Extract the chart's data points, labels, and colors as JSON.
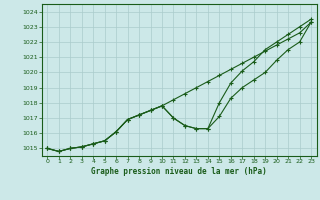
{
  "title": "Graphe pression niveau de la mer (hPa)",
  "bg_color": "#cce8e8",
  "grid_color": "#aacccc",
  "line_color": "#1a5c1a",
  "xlim": [
    -0.5,
    23.5
  ],
  "ylim": [
    1014.5,
    1024.5
  ],
  "yticks": [
    1015,
    1016,
    1017,
    1018,
    1019,
    1020,
    1021,
    1022,
    1023,
    1024
  ],
  "xticks": [
    0,
    1,
    2,
    3,
    4,
    5,
    6,
    7,
    8,
    9,
    10,
    11,
    12,
    13,
    14,
    15,
    16,
    17,
    18,
    19,
    20,
    21,
    22,
    23
  ],
  "series": [
    [
      1015.0,
      1014.8,
      1015.0,
      1015.1,
      1015.3,
      1015.5,
      1016.1,
      1016.9,
      1017.2,
      1017.5,
      1017.8,
      1017.0,
      1016.5,
      1016.3,
      1016.3,
      1017.1,
      1018.3,
      1019.0,
      1019.5,
      1020.0,
      1020.8,
      1021.5,
      1022.0,
      1023.3
    ],
    [
      1015.0,
      1014.8,
      1015.0,
      1015.1,
      1015.3,
      1015.5,
      1016.1,
      1016.9,
      1017.2,
      1017.5,
      1017.8,
      1017.0,
      1016.5,
      1016.3,
      1016.3,
      1018.0,
      1019.3,
      1020.1,
      1020.7,
      1021.5,
      1022.0,
      1022.5,
      1023.0,
      1023.5
    ],
    [
      1015.0,
      1014.8,
      1015.0,
      1015.1,
      1015.3,
      1015.5,
      1016.1,
      1016.9,
      1017.2,
      1017.5,
      1017.8,
      1018.2,
      1018.6,
      1019.0,
      1019.4,
      1019.8,
      1020.2,
      1020.6,
      1021.0,
      1021.4,
      1021.8,
      1022.2,
      1022.6,
      1023.3
    ]
  ]
}
